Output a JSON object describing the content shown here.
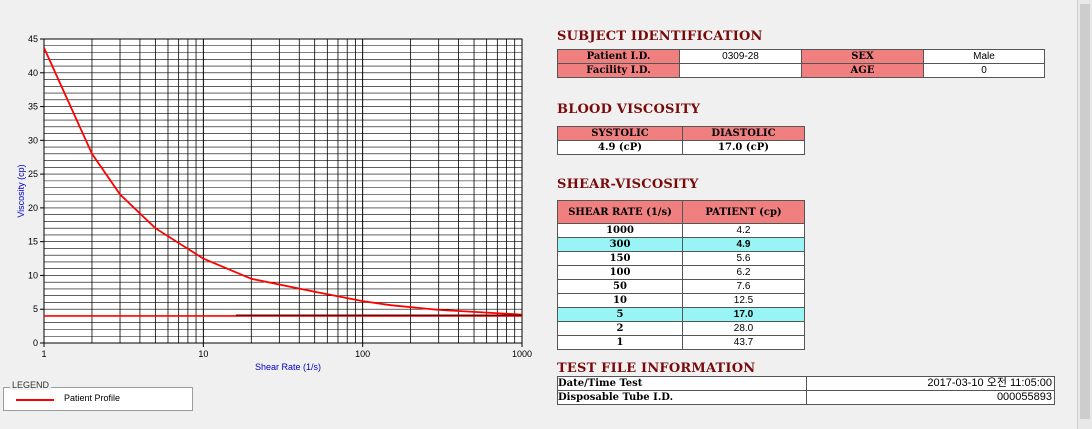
{
  "chart_data": {
    "type": "line",
    "xscale": "log",
    "xlim": [
      1,
      1000
    ],
    "ylim": [
      0,
      45
    ],
    "xticks": [
      "1",
      "10",
      "100",
      "1000"
    ],
    "yticks": [
      "0",
      "5",
      "10",
      "15",
      "20",
      "25",
      "30",
      "35",
      "40",
      "45"
    ],
    "xlabel": "Shear Rate (1/s)",
    "ylabel": "Viscosity (cp)",
    "grid": true,
    "series": [
      {
        "name": "Patient Profile",
        "color": "#ff0000",
        "x": [
          1,
          2,
          3,
          5,
          10,
          20,
          50,
          100,
          150,
          300,
          1000
        ],
        "y": [
          43.7,
          28.0,
          22.0,
          17.0,
          12.5,
          9.5,
          7.6,
          6.2,
          5.6,
          4.9,
          4.2
        ]
      },
      {
        "name": "",
        "color": "#ff0000",
        "x": [
          1,
          1000
        ],
        "y": [
          4.0,
          4.0
        ]
      },
      {
        "name": "",
        "color": "#7a0000",
        "x": [
          16,
          1000
        ],
        "y": [
          4.1,
          4.1
        ]
      }
    ]
  },
  "legend": {
    "title": "LEGEND",
    "items": [
      {
        "label": "Patient Profile",
        "color": "#ff0000"
      }
    ]
  },
  "subject": {
    "title": "SUBJECT IDENTIFICATION",
    "patient_label": "Patient I.D.",
    "patient_value": "0309-28",
    "sex_label": "SEX",
    "sex_value": "Male",
    "facility_label": "Facility I.D.",
    "facility_value": "",
    "age_label": "AGE",
    "age_value": "0"
  },
  "blood": {
    "title": "BLOOD VISCOSITY",
    "systolic_label": "SYSTOLIC",
    "diastolic_label": "DIASTOLIC",
    "systolic_value": "4.9 (cP)",
    "diastolic_value": "17.0 (cP)"
  },
  "shear": {
    "title": "SHEAR-VISCOSITY",
    "col_rate": "SHEAR RATE (1/s)",
    "col_patient": "PATIENT (cp)",
    "rows": [
      {
        "rate": "1000",
        "value": "4.2",
        "hl": false
      },
      {
        "rate": "300",
        "value": "4.9",
        "hl": true
      },
      {
        "rate": "150",
        "value": "5.6",
        "hl": false
      },
      {
        "rate": "100",
        "value": "6.2",
        "hl": false
      },
      {
        "rate": "50",
        "value": "7.6",
        "hl": false
      },
      {
        "rate": "10",
        "value": "12.5",
        "hl": false
      },
      {
        "rate": "5",
        "value": "17.0",
        "hl": true
      },
      {
        "rate": "2",
        "value": "28.0",
        "hl": false
      },
      {
        "rate": "1",
        "value": "43.7",
        "hl": false
      }
    ]
  },
  "testfile": {
    "title": "TEST FILE INFORMATION",
    "datetime_label": "Date/Time Test",
    "datetime_value": "2017-03-10  오전 11:05:00",
    "tube_label": "Disposable Tube I.D.",
    "tube_value": "000055893"
  },
  "colors": {
    "highlight": "#99f5f5",
    "header": "#f08080",
    "title": "#7a0a0a"
  }
}
